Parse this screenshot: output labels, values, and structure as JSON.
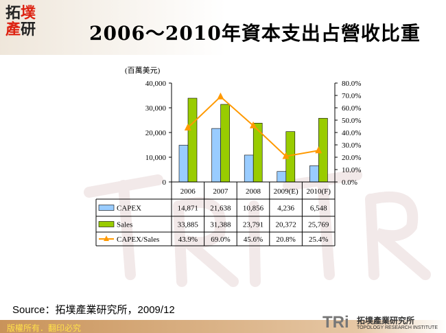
{
  "logo_text": "拓墣產研",
  "title": "2006～2010年資本支出占營收比重",
  "source": "Source：拓墣產業研究所，2009/12",
  "copyright": "版權所有．翻印必究",
  "brand": {
    "mark": "TRi",
    "name": "拓墣產業研究所",
    "english": "TOPOLOGY RESEARCH INSTITUTE"
  },
  "chart_data": {
    "type": "bar",
    "title": "",
    "ylabel": "(百萬美元)",
    "ylim": [
      0,
      40000
    ],
    "y_ticks": [
      "0",
      "10,000",
      "20,000",
      "30,000",
      "40,000"
    ],
    "y2lim": [
      0,
      80
    ],
    "y2_ticks": [
      "0.0%",
      "10.0%",
      "20.0%",
      "30.0%",
      "40.0%",
      "50.0%",
      "60.0%",
      "70.0%",
      "80.0%"
    ],
    "categories": [
      "2006",
      "2007",
      "2008",
      "2009(E)",
      "2010(F)"
    ],
    "series": [
      {
        "name": "CAPEX",
        "type": "bar",
        "axis": "left",
        "color": "#99ccff",
        "values": [
          14871,
          21638,
          10856,
          4236,
          6548
        ],
        "labels": [
          "14,871",
          "21,638",
          "10,856",
          "4,236",
          "6,548"
        ]
      },
      {
        "name": "Sales",
        "type": "bar",
        "axis": "left",
        "color": "#99cc00",
        "values": [
          33885,
          31388,
          23791,
          20372,
          25769
        ],
        "labels": [
          "33,885",
          "31,388",
          "23,791",
          "20,372",
          "25,769"
        ]
      },
      {
        "name": "CAPEX/Sales",
        "type": "line",
        "axis": "right",
        "color": "#ff9900",
        "values": [
          43.9,
          69.0,
          45.6,
          20.8,
          25.4
        ],
        "labels": [
          "43.9%",
          "69.0%",
          "45.6%",
          "20.8%",
          "25.4%"
        ]
      }
    ],
    "grid": false,
    "legend": "data-table"
  }
}
